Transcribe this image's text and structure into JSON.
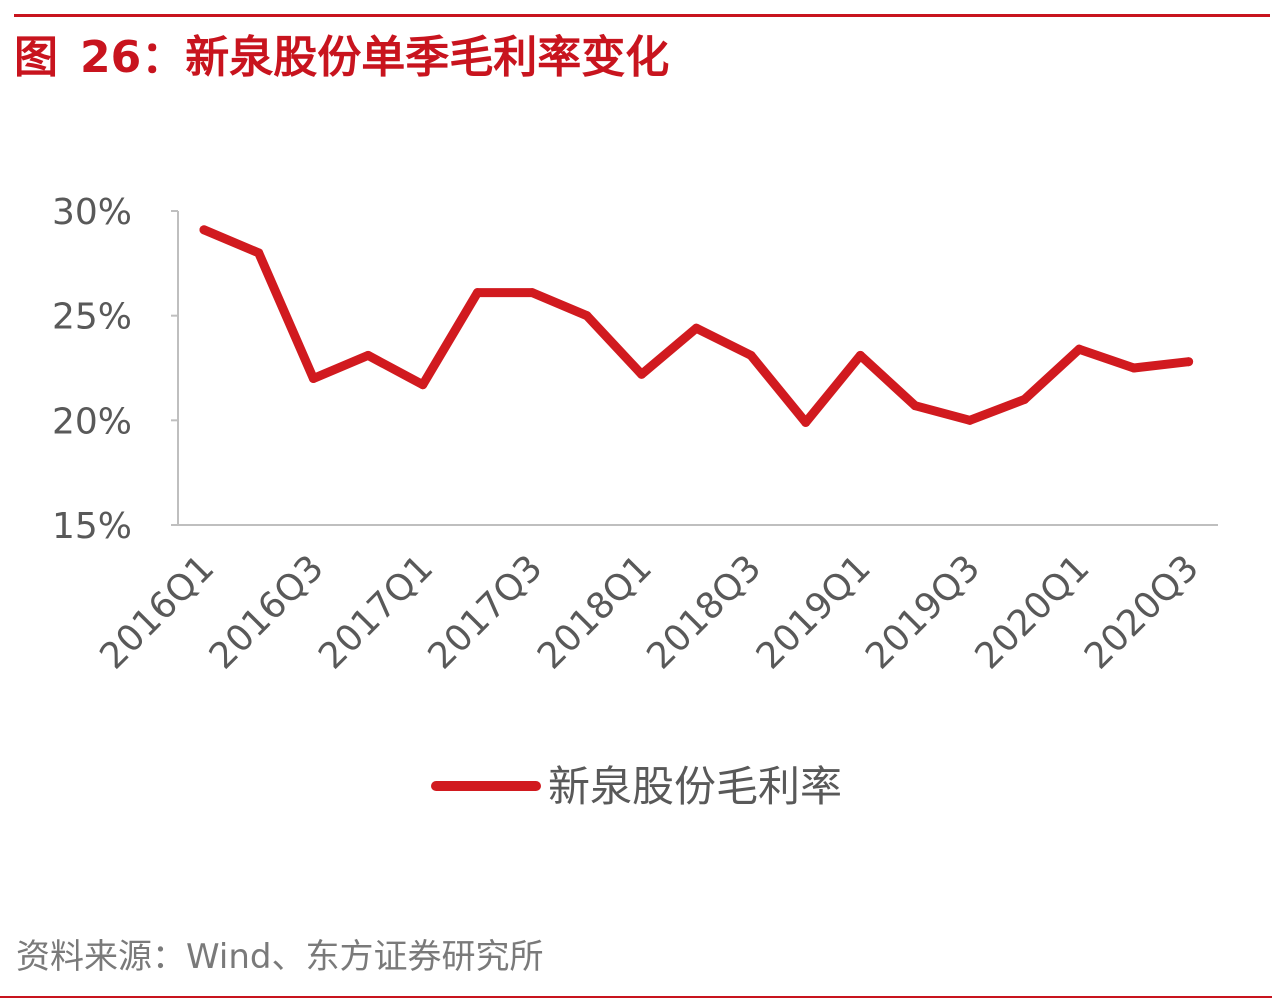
{
  "figure": {
    "label": "图",
    "number": "26：",
    "title": "新泉股份单季毛利率变化"
  },
  "source": "资料来源：Wind、东方证券研究所",
  "colors": {
    "accent": "#c8141e",
    "line": "#d11a1f",
    "axis": "#bfbfbf",
    "text": "#595959",
    "source": "#7a7a7a"
  },
  "chart_data": {
    "type": "line",
    "title": "",
    "xlabel": "",
    "ylabel": "",
    "ylim": [
      0.15,
      0.3
    ],
    "yticks": [
      0.15,
      0.2,
      0.25,
      0.3
    ],
    "ytick_labels": [
      "15%",
      "20%",
      "25%",
      "30%"
    ],
    "grid": false,
    "legend_position": "bottom",
    "categories": [
      "2016Q1",
      "2016Q2",
      "2016Q3",
      "2016Q4",
      "2017Q1",
      "2017Q2",
      "2017Q3",
      "2017Q4",
      "2018Q1",
      "2018Q2",
      "2018Q3",
      "2018Q4",
      "2019Q1",
      "2019Q2",
      "2019Q3",
      "2019Q4",
      "2020Q1",
      "2020Q2",
      "2020Q3"
    ],
    "xtick_labels": [
      "2016Q1",
      "2016Q3",
      "2017Q1",
      "2017Q3",
      "2018Q1",
      "2018Q3",
      "2019Q1",
      "2019Q3",
      "2020Q1",
      "2020Q3"
    ],
    "series": [
      {
        "name": "新泉股份毛利率",
        "values": [
          0.291,
          0.28,
          0.22,
          0.231,
          0.217,
          0.261,
          0.261,
          0.25,
          0.222,
          0.244,
          0.231,
          0.199,
          0.231,
          0.207,
          0.2,
          0.21,
          0.234,
          0.225,
          0.228
        ]
      }
    ]
  }
}
